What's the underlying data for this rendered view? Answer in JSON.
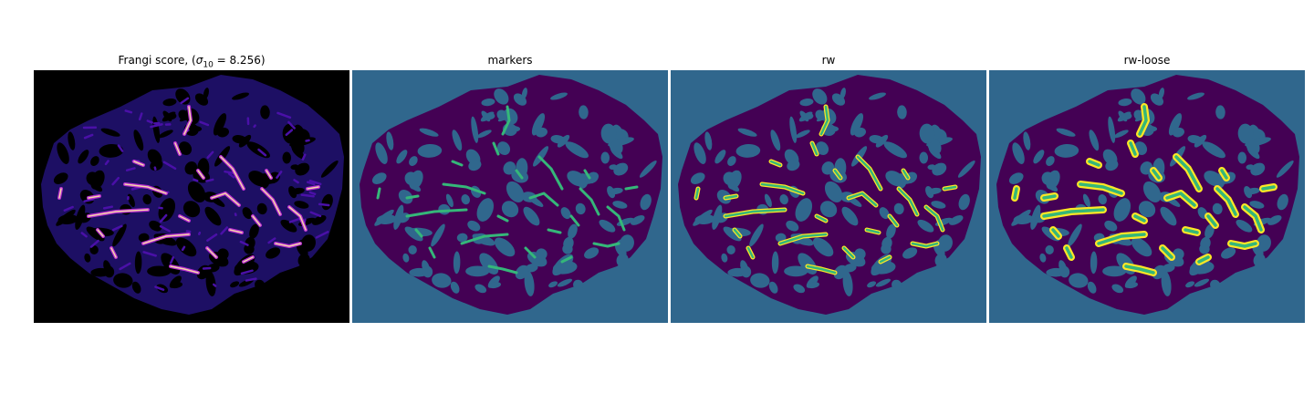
{
  "figure": {
    "panels": [
      {
        "id": "frangi",
        "title_prefix": "Frangi score, (",
        "title_sigma": "σ",
        "title_sub": "10",
        "title_suffix": " = 8.256)",
        "style": "frangi"
      },
      {
        "id": "markers",
        "title": "markers",
        "style": "markers"
      },
      {
        "id": "rw",
        "title": "rw",
        "style": "rw"
      },
      {
        "id": "rw-loose",
        "title": "rw-loose",
        "style": "rw-loose"
      }
    ]
  },
  "colors": {
    "frangi_background": "#000000",
    "frangi_tissue": "#1d0f64",
    "frangi_low": "#4a10a8",
    "frangi_mid": "#b62ed0",
    "frangi_high": "#f5d6a8",
    "seg_background": "#30678d",
    "seg_tissue": "#440154",
    "seg_vessel_core": "#35b779",
    "seg_vessel_edge": "#fde725"
  }
}
